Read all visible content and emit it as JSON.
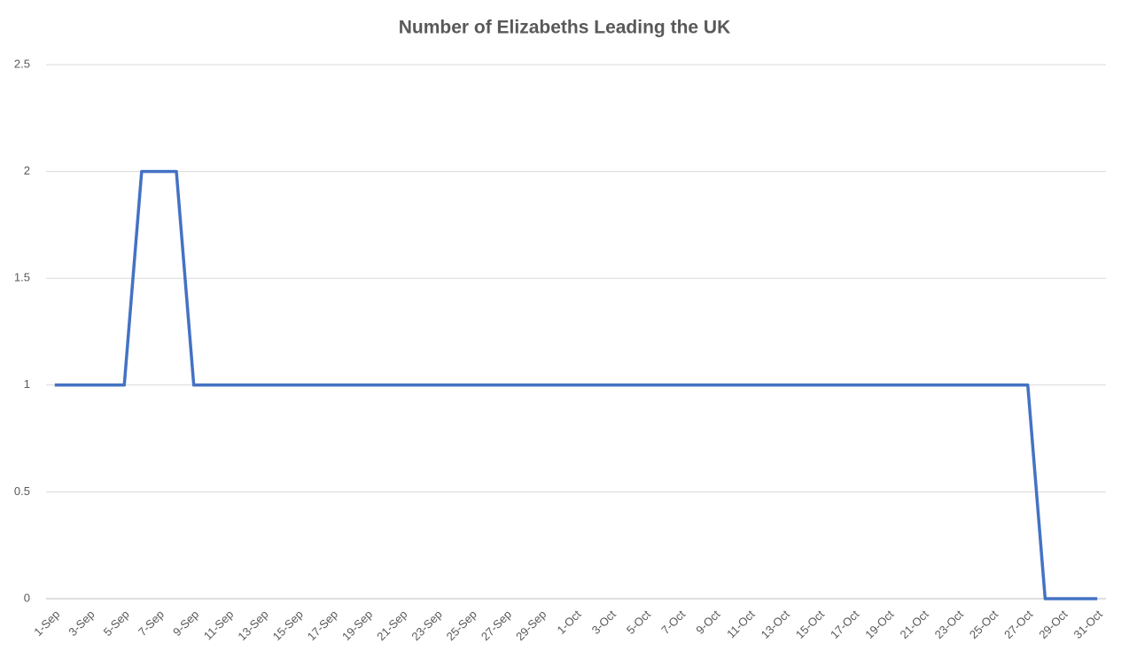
{
  "chart_data": {
    "type": "line",
    "title": "Number of Elizabeths Leading the UK",
    "categories": [
      "1-Sep",
      null,
      "3-Sep",
      null,
      "5-Sep",
      null,
      "7-Sep",
      null,
      "9-Sep",
      null,
      "11-Sep",
      null,
      "13-Sep",
      null,
      "15-Sep",
      null,
      "17-Sep",
      null,
      "19-Sep",
      null,
      "21-Sep",
      null,
      "23-Sep",
      null,
      "25-Sep",
      null,
      "27-Sep",
      null,
      "29-Sep",
      null,
      "1-Oct",
      null,
      "3-Oct",
      null,
      "5-Oct",
      null,
      "7-Oct",
      null,
      "9-Oct",
      null,
      "11-Oct",
      null,
      "13-Oct",
      null,
      "15-Oct",
      null,
      "17-Oct",
      null,
      "19-Oct",
      null,
      "21-Oct",
      null,
      "23-Oct",
      null,
      "25-Oct",
      null,
      "27-Oct",
      null,
      "29-Oct",
      null,
      "31-Oct"
    ],
    "values": [
      1,
      1,
      1,
      1,
      1,
      2,
      2,
      2,
      1,
      1,
      1,
      1,
      1,
      1,
      1,
      1,
      1,
      1,
      1,
      1,
      1,
      1,
      1,
      1,
      1,
      1,
      1,
      1,
      1,
      1,
      1,
      1,
      1,
      1,
      1,
      1,
      1,
      1,
      1,
      1,
      1,
      1,
      1,
      1,
      1,
      1,
      1,
      1,
      1,
      1,
      1,
      1,
      1,
      1,
      1,
      1,
      1,
      0,
      0,
      0,
      0
    ],
    "color": "#4472c4",
    "ylim": [
      0,
      2.5
    ],
    "yticks": [
      0,
      0.5,
      1,
      1.5,
      2,
      2.5
    ],
    "grid": true
  }
}
